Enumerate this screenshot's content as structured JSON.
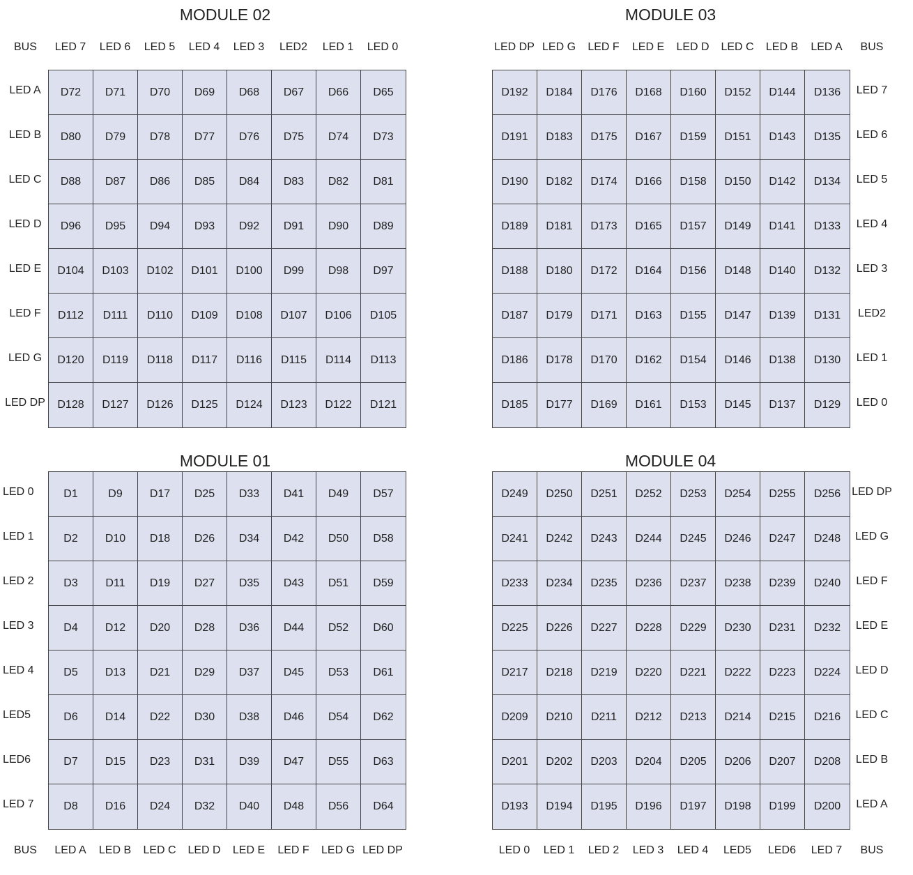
{
  "modules": [
    {
      "id": "m02",
      "title": "MODULE 02",
      "corner_label": "BUS",
      "col_labels": [
        "LED 7",
        "LED 6",
        "LED 5",
        "LED 4",
        "LED 3",
        "LED2",
        "LED 1",
        "LED 0"
      ],
      "row_labels": [
        "LED A",
        "LED B",
        "LED C",
        "LED D",
        "LED E",
        "LED F",
        "LED G",
        "LED DP"
      ],
      "cells": [
        [
          "D72",
          "D71",
          "D70",
          "D69",
          "D68",
          "D67",
          "D66",
          "D65"
        ],
        [
          "D80",
          "D79",
          "D78",
          "D77",
          "D76",
          "D75",
          "D74",
          "D73"
        ],
        [
          "D88",
          "D87",
          "D86",
          "D85",
          "D84",
          "D83",
          "D82",
          "D81"
        ],
        [
          "D96",
          "D95",
          "D94",
          "D93",
          "D92",
          "D91",
          "D90",
          "D89"
        ],
        [
          "D104",
          "D103",
          "D102",
          "D101",
          "D100",
          "D99",
          "D98",
          "D97"
        ],
        [
          "D112",
          "D111",
          "D110",
          "D109",
          "D108",
          "D107",
          "D106",
          "D105"
        ],
        [
          "D120",
          "D119",
          "D118",
          "D117",
          "D116",
          "D115",
          "D114",
          "D113"
        ],
        [
          "D128",
          "D127",
          "D126",
          "D125",
          "D124",
          "D123",
          "D122",
          "D121"
        ]
      ]
    },
    {
      "id": "m03",
      "title": "MODULE 03",
      "corner_label": "BUS",
      "col_labels": [
        "LED DP",
        "LED G",
        "LED F",
        "LED E",
        "LED D",
        "LED C",
        "LED B",
        "LED A"
      ],
      "row_labels": [
        "LED 7",
        "LED 6",
        "LED 5",
        "LED 4",
        "LED 3",
        "LED2",
        "LED 1",
        "LED 0"
      ],
      "cells": [
        [
          "D192",
          "D184",
          "D176",
          "D168",
          "D160",
          "D152",
          "D144",
          "D136"
        ],
        [
          "D191",
          "D183",
          "D175",
          "D167",
          "D159",
          "D151",
          "D143",
          "D135"
        ],
        [
          "D190",
          "D182",
          "D174",
          "D166",
          "D158",
          "D150",
          "D142",
          "D134"
        ],
        [
          "D189",
          "D181",
          "D173",
          "D165",
          "D157",
          "D149",
          "D141",
          "D133"
        ],
        [
          "D188",
          "D180",
          "D172",
          "D164",
          "D156",
          "D148",
          "D140",
          "D132"
        ],
        [
          "D187",
          "D179",
          "D171",
          "D163",
          "D155",
          "D147",
          "D139",
          "D131"
        ],
        [
          "D186",
          "D178",
          "D170",
          "D162",
          "D154",
          "D146",
          "D138",
          "D130"
        ],
        [
          "D185",
          "D177",
          "D169",
          "D161",
          "D153",
          "D145",
          "D137",
          "D129"
        ]
      ]
    },
    {
      "id": "m01",
      "title": "MODULE 01",
      "corner_label": "BUS",
      "col_labels": [
        "LED A",
        "LED B",
        "LED C",
        "LED D",
        "LED E",
        "LED F",
        "LED G",
        "LED DP"
      ],
      "row_labels": [
        "LED 0",
        "LED 1",
        "LED 2",
        "LED 3",
        "LED 4",
        "LED5",
        "LED6",
        "LED 7"
      ],
      "cells": [
        [
          "D1",
          "D9",
          "D17",
          "D25",
          "D33",
          "D41",
          "D49",
          "D57"
        ],
        [
          "D2",
          "D10",
          "D18",
          "D26",
          "D34",
          "D42",
          "D50",
          "D58"
        ],
        [
          "D3",
          "D11",
          "D19",
          "D27",
          "D35",
          "D43",
          "D51",
          "D59"
        ],
        [
          "D4",
          "D12",
          "D20",
          "D28",
          "D36",
          "D44",
          "D52",
          "D60"
        ],
        [
          "D5",
          "D13",
          "D21",
          "D29",
          "D37",
          "D45",
          "D53",
          "D61"
        ],
        [
          "D6",
          "D14",
          "D22",
          "D30",
          "D38",
          "D46",
          "D54",
          "D62"
        ],
        [
          "D7",
          "D15",
          "D23",
          "D31",
          "D39",
          "D47",
          "D55",
          "D63"
        ],
        [
          "D8",
          "D16",
          "D24",
          "D32",
          "D40",
          "D48",
          "D56",
          "D64"
        ]
      ]
    },
    {
      "id": "m04",
      "title": "MODULE 04",
      "corner_label": "BUS",
      "col_labels": [
        "LED 0",
        "LED 1",
        "LED 2",
        "LED 3",
        "LED 4",
        "LED5",
        "LED6",
        "LED 7"
      ],
      "row_labels": [
        "LED DP",
        "LED G",
        "LED F",
        "LED E",
        "LED D",
        "LED C",
        "LED B",
        "LED A"
      ],
      "cells": [
        [
          "D249",
          "D250",
          "D251",
          "D252",
          "D253",
          "D254",
          "D255",
          "D256"
        ],
        [
          "D241",
          "D242",
          "D243",
          "D244",
          "D245",
          "D246",
          "D247",
          "D248"
        ],
        [
          "D233",
          "D234",
          "D235",
          "D236",
          "D237",
          "D238",
          "D239",
          "D240"
        ],
        [
          "D225",
          "D226",
          "D227",
          "D228",
          "D229",
          "D230",
          "D231",
          "D232"
        ],
        [
          "D217",
          "D218",
          "D219",
          "D220",
          "D221",
          "D222",
          "D223",
          "D224"
        ],
        [
          "D209",
          "D210",
          "D211",
          "D212",
          "D213",
          "D214",
          "D215",
          "D216"
        ],
        [
          "D201",
          "D202",
          "D203",
          "D204",
          "D205",
          "D206",
          "D207",
          "D208"
        ],
        [
          "D193",
          "D194",
          "D195",
          "D196",
          "D197",
          "D198",
          "D199",
          "D200"
        ]
      ]
    }
  ]
}
